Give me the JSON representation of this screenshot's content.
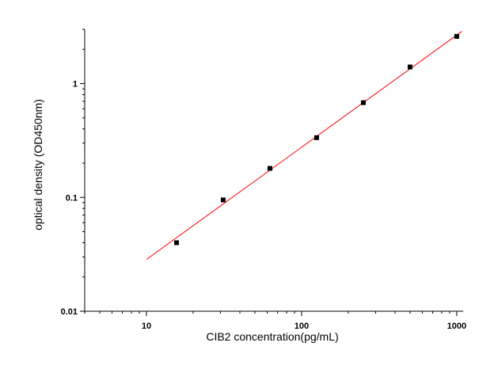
{
  "chart_data": {
    "type": "scatter",
    "title": "",
    "xlabel": "CIB2  concentration(pg/mL)",
    "ylabel": "optical density (OD450nm)",
    "x_scale": "log",
    "y_scale": "log",
    "xlim": [
      4,
      1100
    ],
    "ylim": [
      0.01,
      3
    ],
    "x_tick_labels": [
      "10",
      "100",
      "1000"
    ],
    "y_tick_labels": [
      "0.01",
      "0.1",
      "1"
    ],
    "grid": false,
    "legend": "none",
    "series": [
      {
        "x": [
          15.625,
          31.25,
          62.5,
          125,
          250,
          500,
          1000
        ],
        "y": [
          0.04,
          0.095,
          0.18,
          0.335,
          0.68,
          1.4,
          2.6
        ],
        "marker": "square",
        "color": "#000000"
      }
    ],
    "fit_line": {
      "x": [
        10,
        1080
      ],
      "y": [
        0.0285,
        2.88
      ],
      "color": "#ff0000"
    }
  }
}
